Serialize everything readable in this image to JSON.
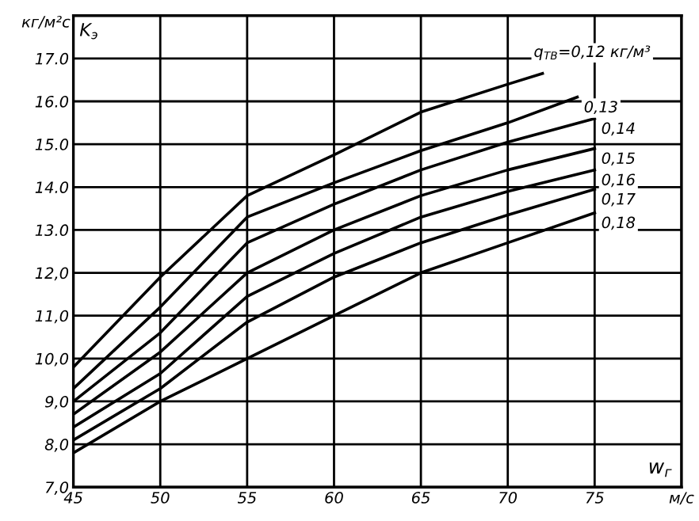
{
  "chart_data": {
    "type": "line",
    "ylabel": "кг/м²с",
    "xlabel": "w$_{г}$",
    "annotations": [
      "K$_{э}$"
    ],
    "xlim": [
      45,
      80
    ],
    "ylim": [
      7,
      18
    ],
    "xticks": [
      45,
      50,
      55,
      60,
      65,
      70,
      75,
      {
        "value": 80,
        "label": "м/с"
      }
    ],
    "yticks": [
      {
        "value": 7,
        "label": "7,0"
      },
      {
        "value": 8,
        "label": "8,0"
      },
      {
        "value": 9,
        "label": "9,0"
      },
      {
        "value": 10,
        "label": "10,0"
      },
      {
        "value": 11,
        "label": "11,0"
      },
      {
        "value": 12,
        "label": "12,0"
      },
      {
        "value": 13,
        "label": "13.0"
      },
      {
        "value": 14,
        "label": "14.0"
      },
      {
        "value": 15,
        "label": "15.0"
      },
      {
        "value": 16,
        "label": "16.0"
      },
      {
        "value": 17,
        "label": "17.0"
      }
    ],
    "grid": true,
    "marker": "none",
    "line_style": "solid",
    "series": [
      {
        "name": "q$_{ТВ}$=0,12 кг/м³",
        "color": "#000000",
        "x": [
          45,
          50,
          55,
          60,
          65,
          70,
          72
        ],
        "values": [
          9.8,
          11.9,
          13.8,
          14.75,
          15.75,
          16.4,
          16.65
        ]
      },
      {
        "name": "0,13",
        "color": "#000000",
        "x": [
          45,
          50,
          55,
          60,
          65,
          70,
          74
        ],
        "values": [
          9.3,
          11.2,
          13.3,
          14.1,
          14.85,
          15.5,
          16.1
        ]
      },
      {
        "name": "0,14",
        "color": "#000000",
        "x": [
          45,
          50,
          55,
          60,
          65,
          70,
          75
        ],
        "values": [
          9.0,
          10.6,
          12.7,
          13.6,
          14.4,
          15.05,
          15.6
        ]
      },
      {
        "name": "0,15",
        "color": "#000000",
        "x": [
          45,
          50,
          55,
          60,
          65,
          70,
          75
        ],
        "values": [
          8.7,
          10.15,
          12.0,
          13.0,
          13.8,
          14.4,
          14.9
        ]
      },
      {
        "name": "0,16",
        "color": "#000000",
        "x": [
          45,
          50,
          55,
          60,
          65,
          70,
          75
        ],
        "values": [
          8.4,
          9.65,
          11.45,
          12.45,
          13.3,
          13.9,
          14.4
        ]
      },
      {
        "name": "0,17",
        "color": "#000000",
        "x": [
          45,
          50,
          55,
          60,
          65,
          70,
          75
        ],
        "values": [
          8.1,
          9.3,
          10.85,
          11.9,
          12.7,
          13.35,
          13.95
        ]
      },
      {
        "name": "0,18",
        "color": "#000000",
        "x": [
          45,
          50,
          55,
          60,
          65,
          70,
          75
        ],
        "values": [
          7.8,
          9.0,
          10.0,
          11.0,
          12.0,
          12.7,
          13.4
        ]
      }
    ]
  }
}
